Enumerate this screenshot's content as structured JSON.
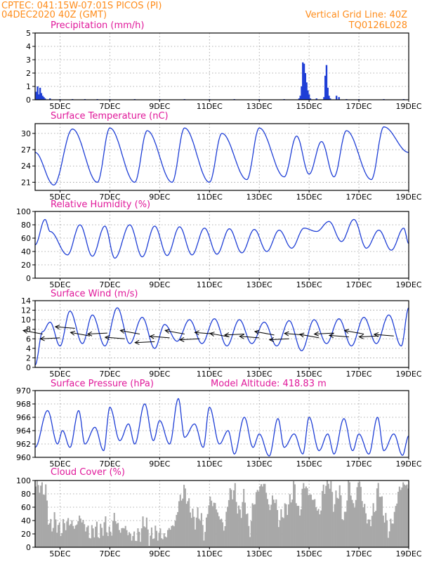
{
  "header": {
    "line1_left": "CPTEC:   041:15W-07:01S   PICOS (PI)",
    "line2_left": "04DEC2020 40Z (GMT)",
    "line1_right": "Vertical Grid Line: 40Z",
    "line2_right": "TQ0126L028"
  },
  "colors": {
    "header": "#ff8c1a",
    "title": "#e0189a",
    "line": "#1f3fd6",
    "bars": "#1f3fd6",
    "cloud": "#a8a8a8"
  },
  "x_axis": {
    "start_day": 4.0,
    "end_day": 19.0,
    "tick_days": [
      5,
      7,
      9,
      11,
      13,
      15,
      17,
      19
    ],
    "tick_labels": [
      "5DEC",
      "7DEC",
      "9DEC",
      "11DEC",
      "13DEC",
      "15DEC",
      "17DEC",
      "19DEC"
    ]
  },
  "chart_data": [
    {
      "id": "precip",
      "type": "bar",
      "title": "Precipitation (mm/h)",
      "ylim": [
        0,
        5
      ],
      "yticks": [
        0,
        1,
        2,
        3,
        4,
        5
      ],
      "x_day": [
        4.05,
        4.1,
        4.15,
        4.2,
        4.25,
        4.3,
        4.35,
        4.4,
        4.6,
        5.0,
        5.5,
        6.0,
        6.5,
        7.0,
        8.0,
        9.0,
        10.0,
        11.0,
        12.0,
        13.0,
        14.0,
        14.6,
        14.65,
        14.7,
        14.75,
        14.8,
        14.85,
        14.9,
        14.95,
        15.0,
        15.05,
        15.3,
        15.6,
        15.65,
        15.7,
        15.75,
        15.8,
        15.85,
        16.1,
        16.2,
        16.5,
        17.0,
        18.0,
        18.8
      ],
      "values": [
        0.6,
        1.0,
        0.4,
        0.9,
        0.5,
        0.3,
        0.2,
        0.1,
        0.1,
        0.05,
        0.05,
        0.05,
        0.05,
        0.05,
        0.05,
        0.05,
        0.05,
        0.05,
        0.05,
        0.05,
        0.05,
        0.1,
        0.3,
        1.0,
        2.8,
        2.7,
        2.0,
        1.3,
        0.7,
        0.4,
        0.1,
        0.1,
        0.2,
        1.8,
        2.6,
        0.9,
        0.3,
        0.1,
        0.3,
        0.2,
        0.05,
        0.05,
        0.05,
        0.05
      ]
    },
    {
      "id": "temp",
      "type": "line",
      "title": "Surface Temperature (nC)",
      "ylim": [
        19.5,
        31.8
      ],
      "yticks": [
        21,
        24,
        27,
        30
      ],
      "base": 25.5,
      "amp_early": 5.5,
      "amp_late": 5.0,
      "peak_hour": 18,
      "x_day": [
        4.0,
        4.75,
        5.5,
        6.5,
        7.0,
        8.0,
        8.5,
        9.5,
        10.0,
        11.0,
        11.5,
        12.5,
        13.0,
        14.0,
        14.5,
        15.0,
        15.5,
        16.0,
        16.5,
        17.5,
        18.0,
        19.0
      ],
      "values": [
        26.5,
        20.5,
        30.8,
        21.0,
        31.0,
        21.0,
        30.5,
        21.0,
        31.0,
        21.0,
        30.0,
        21.5,
        31.0,
        22.0,
        29.5,
        22.5,
        28.5,
        22.0,
        30.5,
        21.5,
        31.2,
        26.5
      ]
    },
    {
      "id": "rh",
      "type": "line",
      "title": "Relative Humidity (%)",
      "ylim": [
        0,
        100
      ],
      "yticks": [
        0,
        20,
        40,
        60,
        80,
        100
      ],
      "x_day": [
        4.0,
        4.4,
        4.6,
        5.3,
        5.8,
        6.3,
        6.8,
        7.2,
        7.8,
        8.3,
        8.8,
        9.3,
        9.8,
        10.3,
        10.8,
        11.3,
        11.8,
        12.3,
        12.8,
        13.3,
        13.8,
        14.3,
        14.8,
        15.3,
        15.8,
        16.3,
        16.8,
        17.3,
        17.8,
        18.3,
        18.8,
        19.0
      ],
      "values": [
        50,
        88,
        70,
        35,
        80,
        33,
        78,
        30,
        80,
        32,
        78,
        34,
        77,
        35,
        75,
        36,
        74,
        38,
        73,
        40,
        72,
        45,
        75,
        70,
        85,
        55,
        88,
        45,
        72,
        42,
        75,
        52
      ]
    },
    {
      "id": "wind",
      "type": "line",
      "title": "Surface Wind (m/s)",
      "ylim": [
        0,
        14
      ],
      "yticks": [
        0,
        2,
        4,
        6,
        8,
        10,
        12,
        14
      ],
      "x_day": [
        4.0,
        4.3,
        4.6,
        5.0,
        5.4,
        5.9,
        6.3,
        6.8,
        7.3,
        7.8,
        8.3,
        8.8,
        9.2,
        9.7,
        10.2,
        10.7,
        11.2,
        11.7,
        12.2,
        12.7,
        13.2,
        13.7,
        14.2,
        14.7,
        15.2,
        15.7,
        16.2,
        16.7,
        17.2,
        17.7,
        18.2,
        18.7,
        19.0
      ],
      "values": [
        0.5,
        7.5,
        9.5,
        4.5,
        11.8,
        5.0,
        11.0,
        4.5,
        12.5,
        5.0,
        10.5,
        4.0,
        9.0,
        5.5,
        10.0,
        5.0,
        10.2,
        4.5,
        10.0,
        5.0,
        9.5,
        4.5,
        9.8,
        3.5,
        10.0,
        5.0,
        10.2,
        4.5,
        10.5,
        5.0,
        11.0,
        4.5,
        12.5
      ],
      "arrows": [
        {
          "x_day": 4.3,
          "y": 7.0
        },
        {
          "x_day": 5.0,
          "y": 6.2
        },
        {
          "x_day": 5.6,
          "y": 8.2
        },
        {
          "x_day": 6.2,
          "y": 6.6
        },
        {
          "x_day": 6.9,
          "y": 7.2
        },
        {
          "x_day": 7.6,
          "y": 6.0
        },
        {
          "x_day": 8.2,
          "y": 7.0
        },
        {
          "x_day": 8.8,
          "y": 5.4
        },
        {
          "x_day": 9.4,
          "y": 6.2
        },
        {
          "x_day": 10.0,
          "y": 7.0
        },
        {
          "x_day": 10.6,
          "y": 6.0
        },
        {
          "x_day": 11.2,
          "y": 7.0
        },
        {
          "x_day": 11.8,
          "y": 6.4
        },
        {
          "x_day": 12.4,
          "y": 7.0
        },
        {
          "x_day": 13.0,
          "y": 6.2
        },
        {
          "x_day": 13.6,
          "y": 6.8
        },
        {
          "x_day": 14.2,
          "y": 6.0
        },
        {
          "x_day": 14.8,
          "y": 6.8
        },
        {
          "x_day": 15.4,
          "y": 6.2
        },
        {
          "x_day": 16.0,
          "y": 7.2
        },
        {
          "x_day": 16.6,
          "y": 6.4
        },
        {
          "x_day": 17.2,
          "y": 7.0
        },
        {
          "x_day": 17.8,
          "y": 6.6
        },
        {
          "x_day": 18.4,
          "y": 6.6
        }
      ]
    },
    {
      "id": "pres",
      "type": "line",
      "title": "Surface Pressure (hPa)",
      "extra_label": "Model Altitude: 418.83 m",
      "ylim": [
        960,
        970
      ],
      "yticks": [
        960,
        962,
        964,
        966,
        968,
        970
      ],
      "x_day": [
        4.0,
        4.5,
        4.9,
        5.1,
        5.4,
        5.75,
        6.0,
        6.4,
        6.75,
        7.0,
        7.4,
        7.75,
        8.0,
        8.4,
        8.75,
        9.0,
        9.4,
        9.75,
        10.0,
        10.4,
        10.75,
        11.0,
        11.4,
        11.75,
        12.0,
        12.4,
        12.75,
        13.0,
        13.4,
        13.75,
        14.0,
        14.4,
        14.75,
        15.0,
        15.4,
        15.75,
        16.0,
        16.4,
        16.75,
        17.0,
        17.4,
        17.75,
        18.0,
        18.4,
        18.75,
        19.0
      ],
      "values": [
        961.5,
        967.0,
        962.0,
        964.0,
        961.5,
        967.0,
        962.0,
        964.5,
        961.0,
        967.5,
        962.5,
        965.0,
        962.0,
        968.0,
        962.5,
        965.5,
        962.0,
        968.8,
        963.0,
        965.0,
        961.5,
        967.5,
        962.0,
        964.0,
        960.5,
        966.0,
        961.5,
        963.5,
        960.2,
        965.8,
        961.5,
        963.5,
        960.5,
        966.0,
        961.0,
        963.5,
        960.5,
        965.8,
        961.0,
        963.5,
        960.5,
        966.0,
        961.0,
        963.5,
        960.3,
        963.2
      ]
    },
    {
      "id": "cloud",
      "type": "bar",
      "title": "Cloud Cover (%)",
      "ylim": [
        0,
        100
      ],
      "yticks": [
        0,
        20,
        40,
        60,
        80,
        100
      ],
      "x_day": [
        4.0,
        4.2,
        4.4,
        4.6,
        4.8,
        5.0,
        5.2,
        5.4,
        5.6,
        5.8,
        6.0,
        6.2,
        6.4,
        6.6,
        6.8,
        7.0,
        7.2,
        7.4,
        7.6,
        7.8,
        8.0,
        8.2,
        8.4,
        8.6,
        8.8,
        9.0,
        9.2,
        9.4,
        9.6,
        9.8,
        10.0,
        10.2,
        10.4,
        10.6,
        10.8,
        11.0,
        11.2,
        11.4,
        11.6,
        11.8,
        12.0,
        12.2,
        12.4,
        12.6,
        12.8,
        13.0,
        13.2,
        13.4,
        13.6,
        13.8,
        14.0,
        14.2,
        14.4,
        14.6,
        14.8,
        15.0,
        15.2,
        15.4,
        15.6,
        15.8,
        16.0,
        16.2,
        16.4,
        16.6,
        16.8,
        17.0,
        17.2,
        17.4,
        17.6,
        17.8,
        18.0,
        18.2,
        18.4,
        18.6,
        18.8,
        19.0
      ],
      "values": [
        95,
        90,
        85,
        30,
        40,
        25,
        35,
        38,
        30,
        45,
        32,
        20,
        28,
        22,
        35,
        20,
        45,
        25,
        30,
        18,
        15,
        20,
        40,
        15,
        22,
        20,
        15,
        28,
        35,
        70,
        85,
        60,
        40,
        50,
        20,
        70,
        65,
        45,
        30,
        80,
        85,
        50,
        75,
        25,
        70,
        90,
        95,
        60,
        75,
        40,
        55,
        65,
        90,
        50,
        95,
        80,
        70,
        50,
        90,
        100,
        65,
        85,
        40,
        95,
        60,
        100,
        60,
        35,
        55,
        90,
        50,
        25,
        45,
        85,
        95,
        90
      ]
    }
  ]
}
